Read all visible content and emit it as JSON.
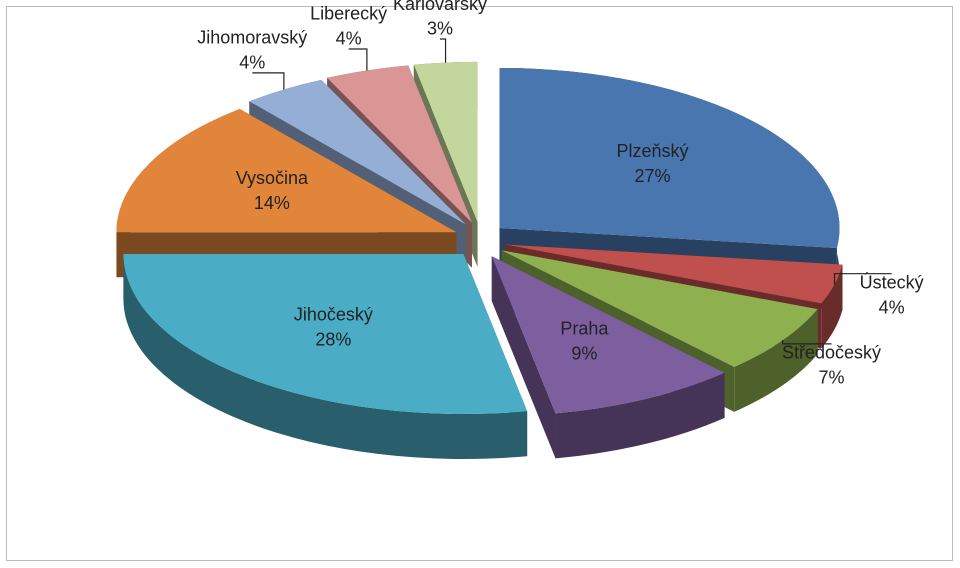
{
  "chart_data": {
    "type": "pie3d",
    "categories": [
      "Plzeňský",
      "Ústecký",
      "Středočeský",
      "Praha",
      "Jihočeský",
      "Vysočina",
      "Jihomoravský",
      "Liberecký",
      "Karlovarský"
    ],
    "values": [
      27,
      4,
      7,
      9,
      28,
      14,
      4,
      4,
      3
    ],
    "value_labels": [
      "27%",
      "4%",
      "7%",
      "9%",
      "28%",
      "14%",
      "4%",
      "4%",
      "3%"
    ],
    "colors": [
      "#4a76b0",
      "#c0504d",
      "#8fb04f",
      "#7d5fa0",
      "#4bacc6",
      "#e0853a",
      "#94aed6",
      "#d99694",
      "#c3d69b"
    ]
  }
}
